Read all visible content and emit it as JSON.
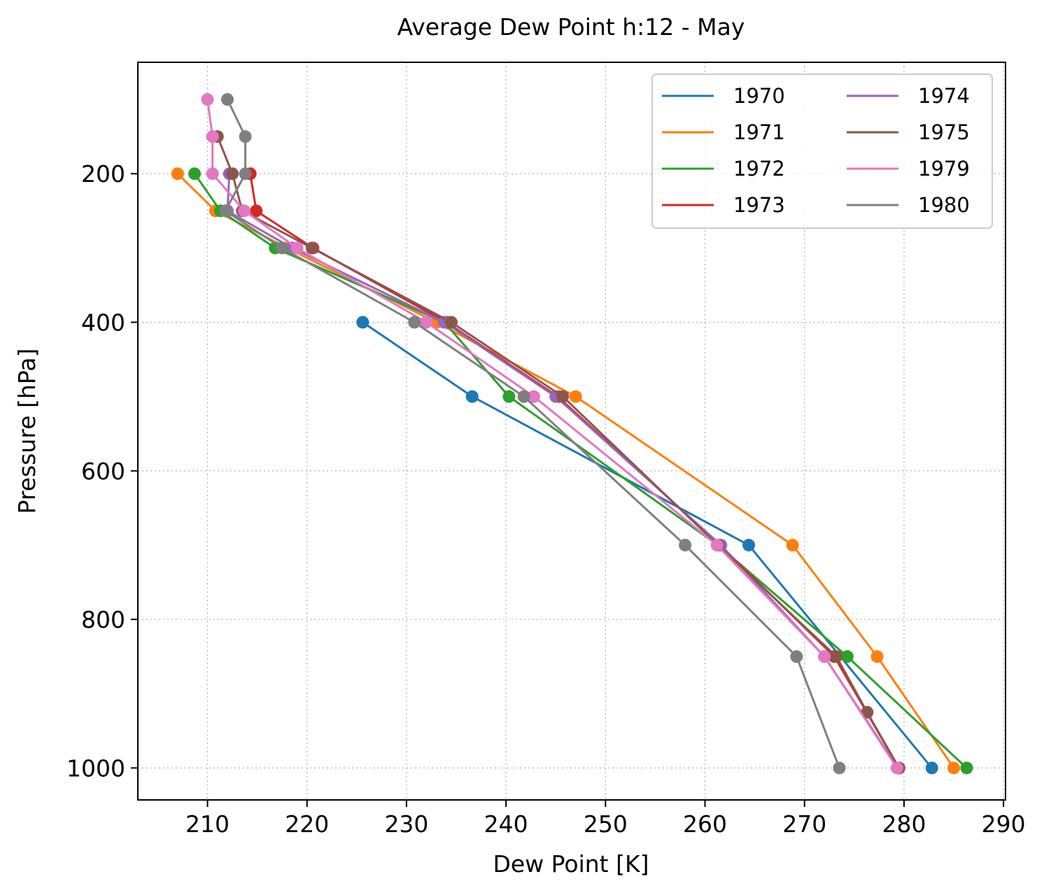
{
  "chart_data": {
    "type": "line",
    "title": "Average Dew Point h:12 - May",
    "xlabel": "Dew Point [K]",
    "ylabel": "Pressure [hPa]",
    "xlim": [
      203,
      290.2
    ],
    "ylim": [
      1043,
      50
    ],
    "x_inverted": false,
    "y_inverted": true,
    "xticks": [
      210,
      220,
      230,
      240,
      250,
      260,
      270,
      280,
      290
    ],
    "yticks": [
      200,
      400,
      600,
      800,
      1000
    ],
    "grid": true,
    "legend_position": "top-right",
    "legend_columns": 2,
    "markers": true,
    "series": [
      {
        "name": "1970",
        "color": "#1f77b4",
        "x": [
          225.6,
          236.6,
          264.4,
          282.8
        ],
        "y": [
          400,
          500,
          700,
          1000
        ]
      },
      {
        "name": "1971",
        "color": "#ff7f0e",
        "x": [
          207.0,
          210.8,
          218.0,
          233.0,
          247.0,
          268.8,
          277.3,
          285.0
        ],
        "y": [
          200,
          250,
          300,
          400,
          500,
          700,
          850,
          1000
        ]
      },
      {
        "name": "1972",
        "color": "#2ca02c",
        "x": [
          208.7,
          211.3,
          216.8,
          233.8,
          240.3,
          261.3,
          274.3,
          286.3
        ],
        "y": [
          200,
          250,
          300,
          400,
          500,
          700,
          850,
          1000
        ]
      },
      {
        "name": "1973",
        "color": "#d62728",
        "x": [
          214.3,
          214.9,
          220.6,
          234.0,
          245.2,
          261.5,
          273.0,
          279.5
        ],
        "y": [
          200,
          250,
          300,
          400,
          500,
          700,
          850,
          1000
        ]
      },
      {
        "name": "1974",
        "color": "#9467bd",
        "x": [
          212.2,
          212.0,
          218.5,
          233.8,
          245.0,
          261.6,
          272.0,
          279.4
        ],
        "y": [
          200,
          250,
          300,
          400,
          500,
          700,
          850,
          1000
        ]
      },
      {
        "name": "1975",
        "color": "#8c564b",
        "x": [
          211.0,
          212.5,
          213.5,
          220.5,
          234.5,
          245.7,
          261.3,
          273.2,
          276.3,
          279.5
        ],
        "y": [
          150,
          200,
          250,
          300,
          400,
          500,
          700,
          850,
          925,
          1000
        ]
      },
      {
        "name": "1979",
        "color": "#e377c2",
        "x": [
          210.0,
          210.5,
          210.5,
          213.7,
          219.0,
          232.0,
          242.8,
          261.2,
          272.0,
          279.3
        ],
        "y": [
          100,
          150,
          200,
          250,
          300,
          400,
          500,
          700,
          850,
          1000
        ]
      },
      {
        "name": "1980",
        "color": "#7f7f7f",
        "x": [
          212.0,
          213.8,
          213.8,
          211.8,
          217.5,
          230.8,
          241.8,
          258.0,
          269.2,
          273.5
        ],
        "y": [
          100,
          150,
          200,
          250,
          300,
          400,
          500,
          700,
          850,
          1000
        ]
      }
    ]
  }
}
